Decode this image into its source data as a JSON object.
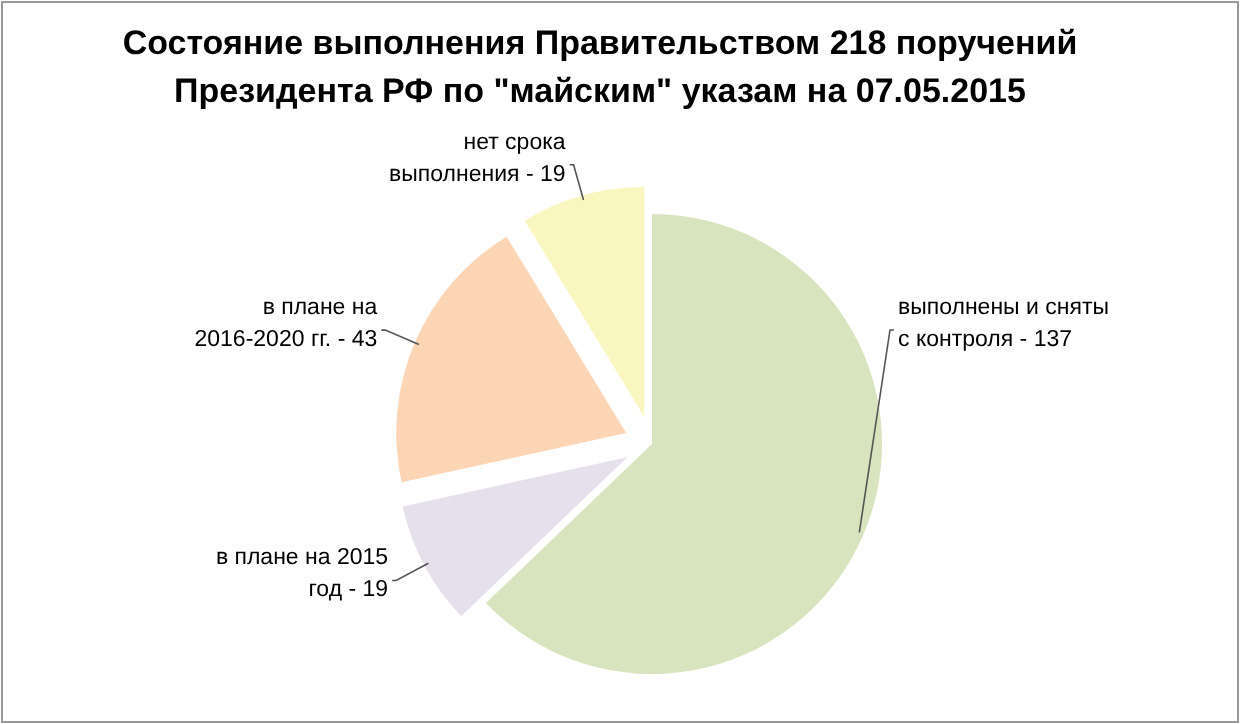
{
  "chart_data": {
    "type": "pie",
    "title": "Состояние выполнения Правительством 218 поручений\nПрезидента РФ по \"майским\" указам на 07.05.2015",
    "categories": [
      "выполнены и сняты с контроля -",
      "в плане на 2015 год -",
      "в плане на 2016-2020 гг. -",
      "нет срока выполнения -"
    ],
    "values": [
      137,
      19,
      43,
      19
    ],
    "colors": [
      "#d7e4bd",
      "#e6e0ec",
      "#fcd5b5",
      "#faf6c0"
    ],
    "data_labels": true
  }
}
